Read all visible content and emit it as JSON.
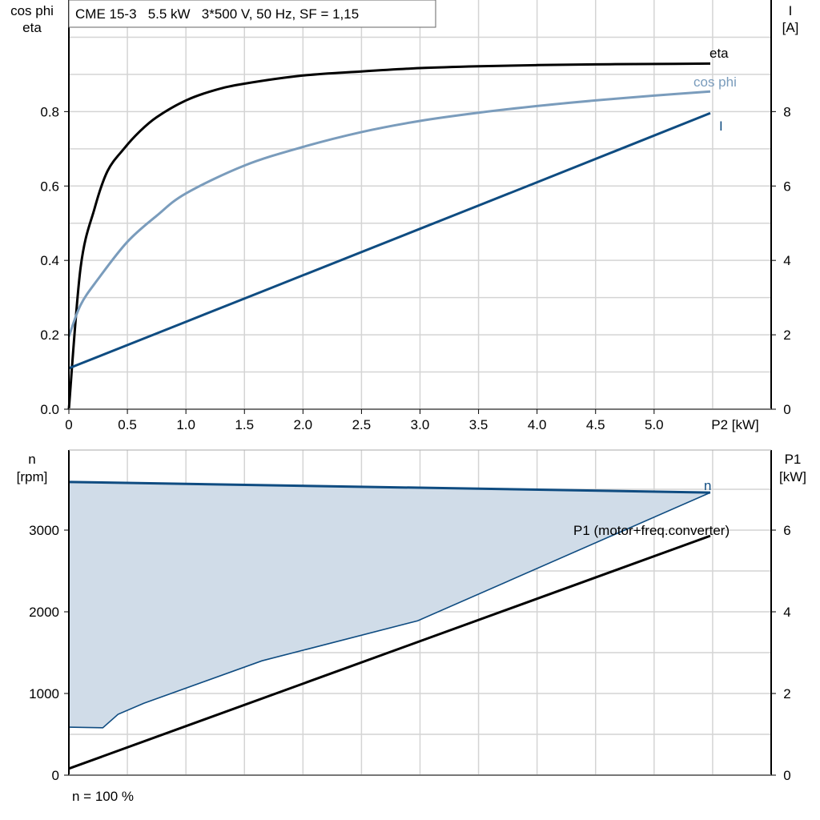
{
  "chart_data": [
    {
      "type": "line",
      "title": "CME 15-3   5.5 kW   3*500 V, 50 Hz, SF = 1,15",
      "xlabel": "P2 [kW]",
      "ylabel": [
        "cos phi",
        "eta"
      ],
      "y2label": [
        "I",
        "[A]"
      ],
      "xlim": [
        0,
        6.0
      ],
      "ylim": [
        0,
        1.1
      ],
      "y2lim": [
        0,
        11
      ],
      "xticks": [
        "0",
        "0.5",
        "1.0",
        "1.5",
        "2.0",
        "2.5",
        "3.0",
        "3.5",
        "4.0",
        "4.5",
        "5.0"
      ],
      "yticks": [
        "0.0",
        "0.2",
        "0.4",
        "0.6",
        "0.8"
      ],
      "y2ticks": [
        "0",
        "2",
        "4",
        "6",
        "8"
      ],
      "grid": true,
      "series": [
        {
          "name": "eta",
          "axis": "left",
          "color": "#000000",
          "x": [
            0,
            0.1,
            0.22,
            0.33,
            0.47,
            0.6,
            0.75,
            1.0,
            1.25,
            1.5,
            2.0,
            2.5,
            3.0,
            3.5,
            4.0,
            4.5,
            5.0,
            5.48
          ],
          "y": [
            0,
            0.38,
            0.54,
            0.64,
            0.7,
            0.745,
            0.785,
            0.83,
            0.858,
            0.875,
            0.897,
            0.908,
            0.917,
            0.922,
            0.925,
            0.927,
            0.928,
            0.929
          ]
        },
        {
          "name": "cos phi",
          "axis": "left",
          "color": "#7a9cbc",
          "x": [
            0,
            0.1,
            0.25,
            0.5,
            0.75,
            1.0,
            1.5,
            2.0,
            2.5,
            3.0,
            3.5,
            4.0,
            4.5,
            5.0,
            5.48
          ],
          "y": [
            0.195,
            0.28,
            0.35,
            0.45,
            0.52,
            0.58,
            0.655,
            0.705,
            0.745,
            0.775,
            0.797,
            0.815,
            0.83,
            0.843,
            0.854
          ]
        },
        {
          "name": "I",
          "axis": "right",
          "color": "#0f4c81",
          "x": [
            0,
            1.0,
            2.0,
            3.0,
            4.0,
            5.48
          ],
          "y": [
            1.1,
            2.35,
            3.6,
            4.85,
            6.1,
            7.96
          ]
        }
      ]
    },
    {
      "type": "area",
      "xlim": [
        0,
        6.0
      ],
      "ylabel": [
        "n",
        "[rpm]"
      ],
      "y2label": [
        "P1",
        "[kW]"
      ],
      "ylim": [
        0,
        4000
      ],
      "y2lim": [
        0,
        8
      ],
      "yticks": [
        "0",
        "1000",
        "2000",
        "3000"
      ],
      "y2ticks": [
        "0",
        "2",
        "4",
        "6"
      ],
      "grid": true,
      "footnote": "n = 100 %",
      "fill_color": "#d0dce8",
      "series": [
        {
          "name": "n",
          "axis": "left",
          "color": "#0f4c81",
          "x": [
            0,
            5.48
          ],
          "y": [
            3590,
            3460
          ]
        },
        {
          "axis": "left",
          "color": "#0f4c81",
          "x": [
            0,
            0.29,
            0.42,
            0.64,
            1.65,
            2.98,
            5.48
          ],
          "y": [
            588,
            580,
            745,
            880,
            1400,
            1890,
            3460
          ]
        },
        {
          "name": "P1 (motor+freq.converter)",
          "axis": "right",
          "color": "#000000",
          "x": [
            0,
            5.48
          ],
          "y": [
            0.16,
            5.86
          ]
        }
      ]
    }
  ]
}
